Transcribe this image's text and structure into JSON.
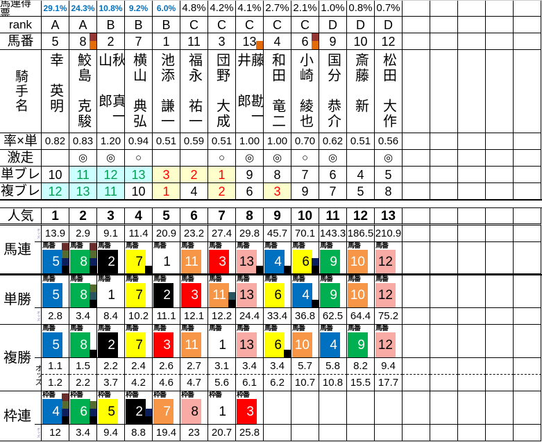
{
  "top": {
    "labels": {
      "votes": "馬連得票",
      "rank": "rank",
      "umaban": "馬番",
      "jockey": "騎手名",
      "ratio": "率×単",
      "gekiso": "激走",
      "tan_bure": "単ブレ",
      "fuku_bure": "複ブレ"
    },
    "votes": [
      "29.1%",
      "24.3%",
      "10.8%",
      "9.2%",
      "6.0%",
      "4.8%",
      "4.2%",
      "4.1%",
      "2.7%",
      "2.1%",
      "1.0%",
      "0.8%",
      "0.7%"
    ],
    "votes_highlight_count": 5,
    "rank": [
      "A",
      "A",
      "B",
      "B",
      "B",
      "C",
      "C",
      "C",
      "C",
      "C",
      "D",
      "D",
      "D"
    ],
    "umaban": [
      "5",
      "8",
      "2",
      "7",
      "1",
      "11",
      "3",
      "13",
      "4",
      "6",
      "9",
      "10",
      "12"
    ],
    "umaban_marks": {
      "1": [
        "#943634",
        "#e36c09"
      ],
      "7": [
        "#e36c09"
      ],
      "9": [
        "#943634",
        "#e36c09"
      ]
    },
    "jockeys": [
      {
        "surname": "幸",
        "given": "英明"
      },
      {
        "surname": "鮫島",
        "given": "克駿"
      },
      {
        "surname": "秋山",
        "given": "真一郎"
      },
      {
        "surname": "横山",
        "given": "典弘"
      },
      {
        "surname": "池添",
        "given": "謙一"
      },
      {
        "surname": "福永",
        "given": "祐一"
      },
      {
        "surname": "団野",
        "given": "大成"
      },
      {
        "surname": "藤井",
        "given": "勘一郎"
      },
      {
        "surname": "和田",
        "given": "竜二"
      },
      {
        "surname": "小崎",
        "given": "綾也"
      },
      {
        "surname": "国分",
        "given": "恭介"
      },
      {
        "surname": "斎藤",
        "given": "新"
      },
      {
        "surname": "松田",
        "given": "大作"
      }
    ],
    "ratio": [
      "0.82",
      "0.83",
      "1.20",
      "0.94",
      "0.51",
      "0.59",
      "0.51",
      "1.00",
      "1.00",
      "0.70",
      "0.62",
      "0.51",
      "0.56"
    ],
    "gekiso": [
      "",
      "◎",
      "◎",
      "○",
      "",
      "",
      "○",
      "◎",
      "◎",
      "○",
      "◎",
      "",
      "◎"
    ],
    "tan_bure": [
      "10",
      "11",
      "12",
      "13",
      "3",
      "2",
      "1",
      "9",
      "8",
      "7",
      "6",
      "4",
      "5"
    ],
    "tan_bure_style": [
      "",
      "cyan",
      "cyan",
      "cyan",
      "yel",
      "yel",
      "yel",
      "",
      "",
      "",
      "",
      "",
      ""
    ],
    "fuku_bure": [
      "12",
      "13",
      "11",
      "10",
      "1",
      "4",
      "2",
      "6",
      "3",
      "9",
      "7",
      "5",
      "8"
    ],
    "fuku_bure_style": [
      "cyan",
      "cyan",
      "cyan",
      "",
      "yel",
      "",
      "yel",
      "",
      "yel",
      "",
      "",
      "",
      ""
    ]
  },
  "bottom": {
    "ninki_label": "人気",
    "ninki": [
      "1",
      "2",
      "3",
      "4",
      "5",
      "6",
      "7",
      "8",
      "9",
      "10",
      "11",
      "12",
      "13"
    ],
    "odds_label": "オッズ",
    "horse_badge_label": "馬番",
    "waku_badge_label": "枠番",
    "umaren": {
      "label": "馬連",
      "odds": [
        "13.9",
        "2.9",
        "9.1",
        "11.4",
        "20.9",
        "23.2",
        "27.4",
        "29.8",
        "45.7",
        "70.1",
        "143.3",
        "186.5",
        "210.9"
      ],
      "horses": [
        "5",
        "8",
        "2",
        "7",
        "1",
        "11",
        "3",
        "13",
        "4",
        "6",
        "9",
        "10",
        "12"
      ],
      "marks": {
        "0": [
          "#6b2c2c",
          "#556b2f",
          "#0a1f5c",
          "#000000"
        ],
        "1": [
          "#6b2c2c",
          "#556b2f",
          "#0a1f5c",
          "#000000"
        ],
        "3": [
          "#000000"
        ],
        "7": [
          "#000000"
        ],
        "8": [
          "#000000"
        ],
        "9": [
          "#0a1f5c",
          "#000000"
        ]
      }
    },
    "tansho": {
      "label": "単勝",
      "horses": [
        "5",
        "8",
        "1",
        "7",
        "2",
        "3",
        "11",
        "13",
        "6",
        "4",
        "9",
        "10",
        "12"
      ],
      "odds": [
        "2.8",
        "3.4",
        "8.4",
        "10.2",
        "11.1",
        "12.1",
        "12.2",
        "24.4",
        "33.4",
        "36.8",
        "62.5",
        "64.4",
        "75.2"
      ],
      "marks": {
        "1": [
          "#556b2f",
          "#2a5560",
          "#000000"
        ],
        "6": [
          "#2a5560",
          "#000000"
        ],
        "9": [
          "#000000"
        ]
      }
    },
    "fukusho": {
      "label": "複勝",
      "horses": [
        "5",
        "8",
        "2",
        "7",
        "3",
        "11",
        "1",
        "13",
        "6",
        "10",
        "4",
        "9",
        "12"
      ],
      "odds_low": [
        "1.1",
        "1.5",
        "2.2",
        "2.4",
        "2.6",
        "2.7",
        "3.1",
        "3.4",
        "3.4",
        "5.7",
        "5.8",
        "8.2",
        "9.4"
      ],
      "odds_high": [
        "1.2",
        "2.2",
        "3.7",
        "4.2",
        "4.6",
        "4.7",
        "5.6",
        "6.1",
        "6.2",
        "10.7",
        "10.8",
        "15.5",
        "17.7"
      ],
      "marks": {
        "1": [
          "#000000"
        ],
        "8": [
          "#000000"
        ]
      }
    },
    "wakuren": {
      "label": "枠連",
      "waku": [
        "4",
        "6",
        "5",
        "2",
        "7",
        "8",
        "1",
        "3"
      ],
      "odds": [
        "12",
        "3.4",
        "9.4",
        "8.8",
        "19.4",
        "23",
        "20.7",
        "25.8"
      ],
      "marks": {
        "0": [
          "#6b2c2c",
          "#556b2f",
          "#0a1f5c",
          "#000000"
        ],
        "1": [
          "#556b2f",
          "#0a1f5c",
          "#000000"
        ],
        "3": [
          "#0a1f5c",
          "#000000"
        ]
      }
    },
    "waku_colors": {
      "1": [
        "#ffffff",
        "#000000"
      ],
      "2": [
        "#000000",
        "#ffffff"
      ],
      "3": [
        "#ff0000",
        "#ffffff"
      ],
      "4": [
        "#0070c0",
        "#ffffff"
      ],
      "5": [
        "#ffff00",
        "#000000"
      ],
      "6": [
        "#00b050",
        "#ffffff"
      ],
      "7": [
        "#f79646",
        "#ffffff"
      ],
      "8": [
        "#f8aaa4",
        "#000000"
      ]
    },
    "horse_waku": {
      "1": "1",
      "2": "2",
      "3": "3",
      "4": "4",
      "5": "4",
      "6": "5",
      "7": "5",
      "8": "6",
      "9": "6",
      "10": "7",
      "11": "7",
      "12": "8",
      "13": "8"
    }
  }
}
